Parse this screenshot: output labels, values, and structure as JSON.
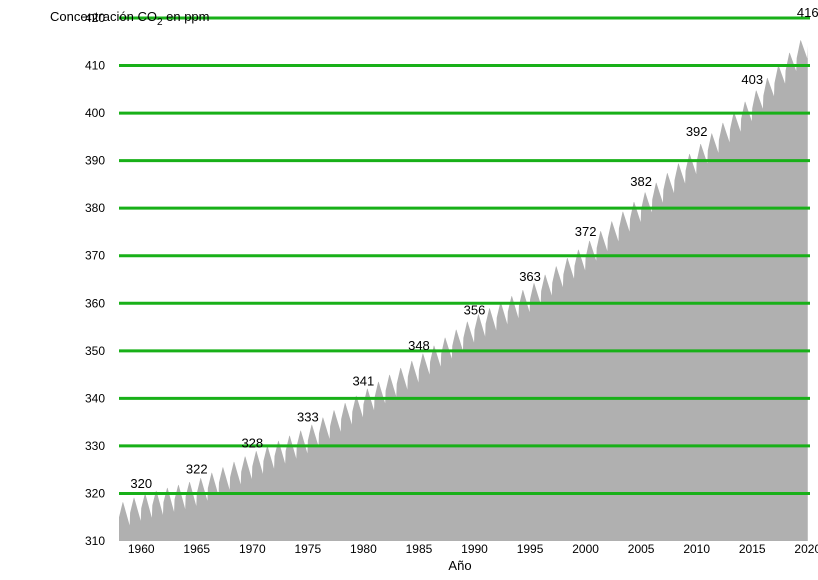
{
  "chart_data": {
    "type": "area",
    "title": "",
    "ylabel_prefix": "Concentración CO",
    "ylabel_subscript": "2",
    "ylabel_suffix": " en ppm",
    "xlabel": "Año",
    "xlim": [
      1958,
      2020.2
    ],
    "ylim": [
      310,
      420
    ],
    "grid": true,
    "x_ticks": [
      1960,
      1965,
      1970,
      1975,
      1980,
      1985,
      1990,
      1995,
      2000,
      2005,
      2010,
      2015,
      2020
    ],
    "y_ticks": [
      310,
      320,
      330,
      340,
      350,
      360,
      370,
      380,
      390,
      400,
      410,
      420
    ],
    "series": [
      {
        "values": [
          {
            "x": 1958,
            "y": 315.0
          },
          {
            "x": 1960,
            "y": 316.9
          },
          {
            "x": 1965,
            "y": 320.0
          },
          {
            "x": 1970,
            "y": 325.7
          },
          {
            "x": 1975,
            "y": 331.1
          },
          {
            "x": 1980,
            "y": 338.7
          },
          {
            "x": 1985,
            "y": 346.0
          },
          {
            "x": 1990,
            "y": 354.4
          },
          {
            "x": 1995,
            "y": 360.8
          },
          {
            "x": 2000,
            "y": 369.6
          },
          {
            "x": 2005,
            "y": 379.8
          },
          {
            "x": 2010,
            "y": 389.9
          },
          {
            "x": 2015,
            "y": 401.0
          },
          {
            "x": 2020,
            "y": 414.2
          }
        ],
        "seasonal_amplitude": 6
      }
    ],
    "annotations": [
      {
        "x": 1960,
        "y": 322,
        "text": "320"
      },
      {
        "x": 1965,
        "y": 325,
        "text": "322"
      },
      {
        "x": 1970,
        "y": 330.5,
        "text": "328"
      },
      {
        "x": 1975,
        "y": 336,
        "text": "333"
      },
      {
        "x": 1980,
        "y": 343.5,
        "text": "341"
      },
      {
        "x": 1985,
        "y": 351,
        "text": "348"
      },
      {
        "x": 1990,
        "y": 358.5,
        "text": "356"
      },
      {
        "x": 1995,
        "y": 365.5,
        "text": "363"
      },
      {
        "x": 2000,
        "y": 375,
        "text": "372"
      },
      {
        "x": 2005,
        "y": 385.5,
        "text": "382"
      },
      {
        "x": 2010,
        "y": 396,
        "text": "392"
      },
      {
        "x": 2015,
        "y": 407,
        "text": "403"
      },
      {
        "x": 2020,
        "y": 421,
        "text": "416"
      }
    ],
    "colors": {
      "area": "#b0b0b0",
      "grid": "#18b018",
      "text": "#000000"
    }
  }
}
